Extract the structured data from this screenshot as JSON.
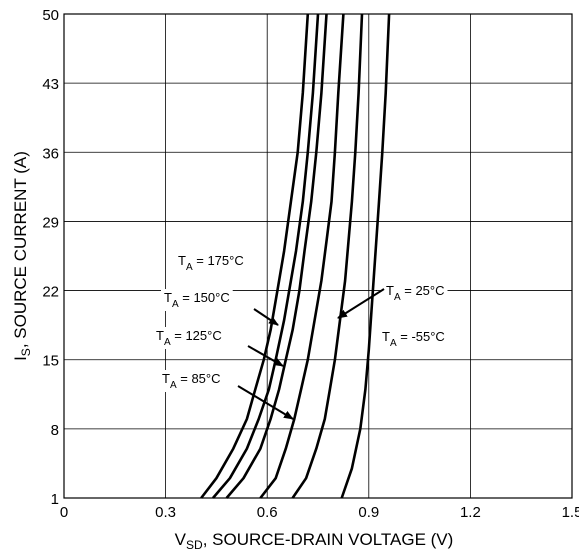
{
  "chart_data": {
    "type": "line",
    "title": "",
    "xlabel": {
      "main": "V",
      "sub": "SD",
      "rest": ", SOURCE-DRAIN VOLTAGE (V)"
    },
    "ylabel": {
      "main": "I",
      "sub": "S",
      "rest": ", SOURCE CURRENT (A)"
    },
    "xlim": [
      0,
      1.5
    ],
    "ylim": [
      1,
      50
    ],
    "xticks": [
      0,
      0.3,
      0.6,
      0.9,
      1.2,
      1.5
    ],
    "xtick_labels": [
      "0",
      "0.3",
      "0.6",
      "0.9",
      "1.2",
      "1.5"
    ],
    "yticks": [
      1,
      8,
      15,
      22,
      29,
      36,
      43,
      50
    ],
    "ytick_labels": [
      "1",
      "8",
      "15",
      "22",
      "29",
      "36",
      "43",
      "50"
    ],
    "grid": true,
    "legend": "none",
    "line_color": "#000000",
    "series": [
      {
        "label_main": "T",
        "label_sub": "A",
        "label_rest": " = 175°C",
        "points": [
          [
            0.405,
            1
          ],
          [
            0.45,
            3
          ],
          [
            0.5,
            6
          ],
          [
            0.54,
            9
          ],
          [
            0.565,
            12
          ],
          [
            0.59,
            15
          ],
          [
            0.61,
            18
          ],
          [
            0.63,
            22
          ],
          [
            0.65,
            26
          ],
          [
            0.67,
            31
          ],
          [
            0.69,
            36
          ],
          [
            0.705,
            42
          ],
          [
            0.72,
            50
          ]
        ]
      },
      {
        "label_main": "T",
        "label_sub": "A",
        "label_rest": " = 150°C",
        "points": [
          [
            0.44,
            1
          ],
          [
            0.49,
            3
          ],
          [
            0.54,
            6
          ],
          [
            0.575,
            9
          ],
          [
            0.605,
            12
          ],
          [
            0.625,
            15
          ],
          [
            0.65,
            19
          ],
          [
            0.665,
            22
          ],
          [
            0.685,
            26
          ],
          [
            0.705,
            31
          ],
          [
            0.72,
            36
          ],
          [
            0.735,
            42
          ],
          [
            0.75,
            50
          ]
        ]
      },
      {
        "label_main": "T",
        "label_sub": "A",
        "label_rest": " = 125°C",
        "points": [
          [
            0.48,
            1
          ],
          [
            0.53,
            3
          ],
          [
            0.58,
            6
          ],
          [
            0.61,
            9
          ],
          [
            0.635,
            12
          ],
          [
            0.655,
            15
          ],
          [
            0.675,
            18
          ],
          [
            0.695,
            22
          ],
          [
            0.71,
            26
          ],
          [
            0.73,
            31
          ],
          [
            0.745,
            36
          ],
          [
            0.76,
            42
          ],
          [
            0.775,
            50
          ]
        ]
      },
      {
        "label_main": "T",
        "label_sub": "A",
        "label_rest": " = 85°C",
        "points": [
          [
            0.58,
            1
          ],
          [
            0.625,
            3
          ],
          [
            0.655,
            6
          ],
          [
            0.68,
            9
          ],
          [
            0.7,
            12
          ],
          [
            0.72,
            15
          ],
          [
            0.74,
            19
          ],
          [
            0.76,
            23
          ],
          [
            0.775,
            27
          ],
          [
            0.79,
            31
          ],
          [
            0.8,
            36
          ],
          [
            0.81,
            42
          ],
          [
            0.825,
            50
          ]
        ]
      },
      {
        "label_main": "T",
        "label_sub": "A",
        "label_rest": " = 25°C",
        "points": [
          [
            0.675,
            1
          ],
          [
            0.715,
            3
          ],
          [
            0.745,
            6
          ],
          [
            0.77,
            9
          ],
          [
            0.785,
            12
          ],
          [
            0.8,
            15
          ],
          [
            0.815,
            19
          ],
          [
            0.83,
            23
          ],
          [
            0.84,
            27
          ],
          [
            0.85,
            31
          ],
          [
            0.86,
            36
          ],
          [
            0.87,
            42
          ],
          [
            0.88,
            50
          ]
        ]
      },
      {
        "label_main": "T",
        "label_sub": "A",
        "label_rest": " = -55°C",
        "points": [
          [
            0.82,
            1
          ],
          [
            0.85,
            4
          ],
          [
            0.875,
            8
          ],
          [
            0.89,
            12
          ],
          [
            0.9,
            16
          ],
          [
            0.91,
            21
          ],
          [
            0.92,
            26
          ],
          [
            0.93,
            31
          ],
          [
            0.94,
            36
          ],
          [
            0.95,
            42
          ],
          [
            0.96,
            50
          ]
        ]
      }
    ]
  }
}
